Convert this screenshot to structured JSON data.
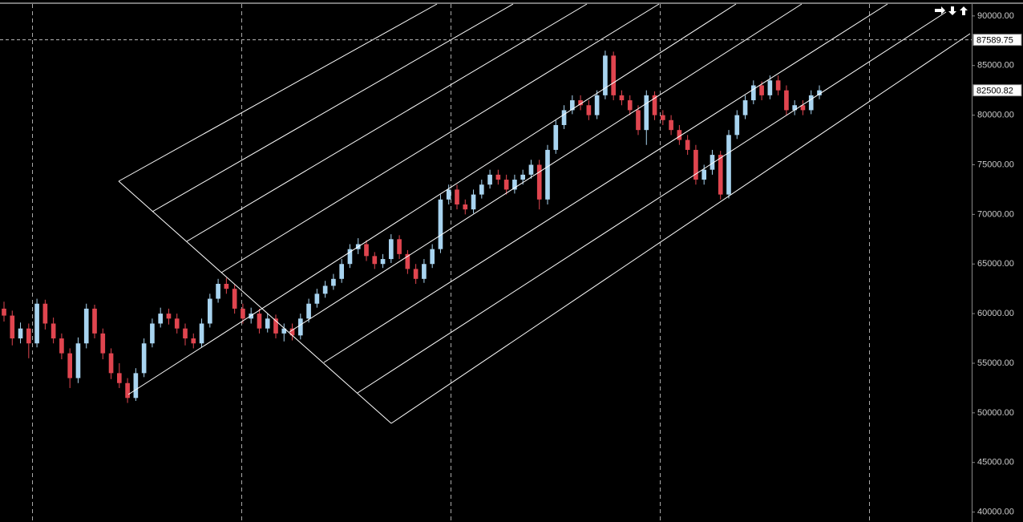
{
  "chart_data": {
    "type": "candlestick",
    "up_color": "#a8d4f0",
    "down_color": "#e0454f",
    "ylim": [
      39000,
      91200
    ],
    "yticks": [
      {
        "value": 90000,
        "label": "90000.00"
      },
      {
        "value": 85000,
        "label": "85000.00"
      },
      {
        "value": 80000,
        "label": "80000.00"
      },
      {
        "value": 75000,
        "label": "75000.00"
      },
      {
        "value": 70000,
        "label": "70000.00"
      },
      {
        "value": 65000,
        "label": "65000.00"
      },
      {
        "value": 60000,
        "label": "60000.00"
      },
      {
        "value": 55000,
        "label": "55000.00"
      },
      {
        "value": 50000,
        "label": "50000.00"
      },
      {
        "value": 45000,
        "label": "45000.00"
      },
      {
        "value": 40000,
        "label": "40000.00"
      }
    ],
    "crosshair_price": 87589.75,
    "last_price": 82500.82,
    "open": [
      60500,
      59800,
      57500,
      58500,
      57000,
      61000,
      59000,
      57500,
      56000,
      53500,
      57000,
      60500,
      58000,
      56000,
      54000,
      53000,
      51500,
      54000,
      57000,
      59000,
      60000,
      59500,
      58500,
      57500,
      57000,
      59000,
      61500,
      63000,
      62500,
      60500,
      59500,
      60000,
      58500,
      59500,
      58000,
      58500,
      57800,
      59500,
      61000,
      62000,
      62800,
      63500,
      65000,
      66500,
      67000,
      65800,
      65000,
      65500,
      67500,
      66000,
      64500,
      63500,
      65000,
      66500,
      71500,
      72500,
      71000,
      70500,
      72000,
      73000,
      74000,
      73500,
      72500,
      73500,
      74000,
      75000,
      71500,
      76500,
      79000,
      80500,
      81500,
      81000,
      80000,
      82000,
      86000,
      82000,
      81500,
      80500,
      78500,
      82000,
      80000,
      79500,
      78500,
      77500,
      76500,
      73500,
      74500,
      76000,
      72000,
      78000,
      80000,
      81500,
      83000,
      82000,
      83500,
      82500,
      80500,
      81000,
      80500,
      82000
    ],
    "high": [
      61200,
      60300,
      59100,
      59000,
      61500,
      61400,
      59600,
      58000,
      56500,
      57600,
      61000,
      60900,
      58500,
      56500,
      55000,
      53500,
      54500,
      57500,
      59500,
      60600,
      60500,
      60000,
      59000,
      58000,
      59500,
      62000,
      63500,
      63600,
      62900,
      61000,
      60600,
      60500,
      60000,
      59900,
      59000,
      59000,
      60000,
      61500,
      62500,
      63300,
      64000,
      65500,
      67000,
      67600,
      67400,
      66200,
      66000,
      68000,
      67900,
      66400,
      65000,
      65500,
      67000,
      72000,
      73000,
      73000,
      71500,
      72500,
      73500,
      74500,
      74500,
      74000,
      74000,
      74500,
      75500,
      75500,
      77000,
      79500,
      81000,
      82000,
      82000,
      81500,
      82500,
      86500,
      86400,
      82500,
      82000,
      81000,
      82500,
      82400,
      80500,
      80000,
      79000,
      78000,
      77000,
      75000,
      76500,
      76400,
      78500,
      80500,
      82000,
      83500,
      83400,
      84000,
      84000,
      83000,
      81500,
      81500,
      82500,
      83000
    ],
    "low": [
      59200,
      56800,
      57000,
      55500,
      56600,
      58400,
      57000,
      55400,
      52500,
      53000,
      56500,
      57500,
      55400,
      53400,
      52500,
      51000,
      51200,
      53600,
      56600,
      58600,
      58900,
      58000,
      56800,
      56500,
      56600,
      58600,
      61100,
      62000,
      60000,
      59000,
      59000,
      58000,
      58100,
      57500,
      57200,
      57300,
      57400,
      59100,
      60600,
      61600,
      62400,
      63100,
      64600,
      66000,
      65300,
      64500,
      64600,
      65100,
      65500,
      64000,
      63000,
      63100,
      64600,
      66100,
      71000,
      70500,
      70000,
      70100,
      71600,
      72600,
      73000,
      72000,
      72100,
      73000,
      73600,
      70500,
      71000,
      76100,
      78600,
      80100,
      80500,
      79500,
      79600,
      81600,
      81500,
      81000,
      80000,
      78000,
      77000,
      79500,
      79000,
      78000,
      77000,
      76000,
      73000,
      73000,
      74000,
      71500,
      71600,
      77600,
      79600,
      81100,
      81500,
      81600,
      82000,
      80000,
      80000,
      80000,
      80100,
      81600
    ],
    "close": [
      59800,
      57500,
      58500,
      57000,
      61000,
      59000,
      57500,
      56000,
      53500,
      57000,
      60500,
      58000,
      56000,
      54000,
      53000,
      51500,
      54000,
      57000,
      59000,
      60000,
      59500,
      58500,
      57500,
      57000,
      59000,
      61500,
      63000,
      62500,
      60500,
      59500,
      60000,
      58500,
      59500,
      58000,
      58500,
      57800,
      59500,
      61000,
      62000,
      62800,
      63500,
      65000,
      66500,
      67000,
      65800,
      65000,
      65500,
      67500,
      66000,
      64500,
      63500,
      65000,
      66500,
      71500,
      72500,
      71000,
      70500,
      72000,
      73000,
      74000,
      73500,
      72500,
      73500,
      74000,
      75000,
      71500,
      76500,
      79000,
      80500,
      81500,
      81000,
      80000,
      82000,
      86000,
      82000,
      81500,
      80500,
      78500,
      82000,
      80000,
      79500,
      78500,
      77500,
      76500,
      73500,
      74500,
      76000,
      72000,
      78000,
      80000,
      81500,
      83000,
      82000,
      83500,
      82500,
      80500,
      81000,
      80500,
      82000,
      82500.82
    ]
  }
}
